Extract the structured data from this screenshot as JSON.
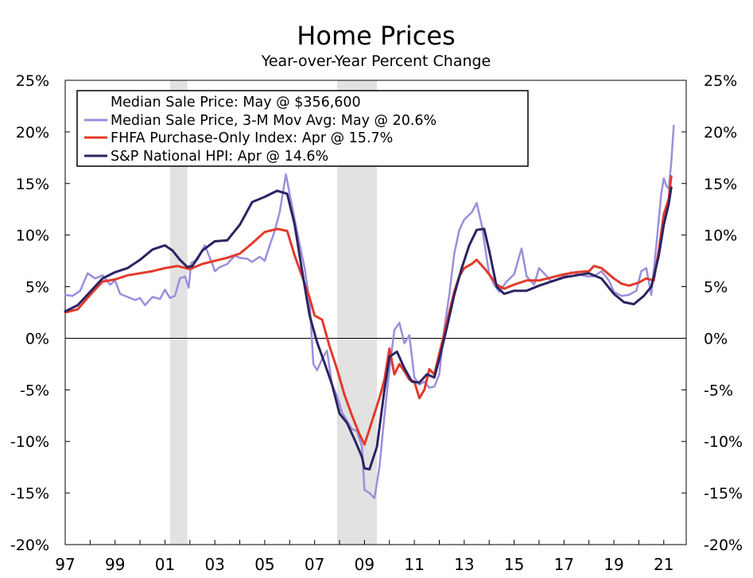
{
  "chart_data": {
    "type": "line",
    "title": "Home Prices",
    "subtitle": "Year-over-Year Percent Change",
    "xlabel": "",
    "ylabel": "",
    "xlim": [
      1997.0,
      2021.9
    ],
    "ylim": [
      -20,
      25
    ],
    "y_ticks": [
      25,
      20,
      15,
      10,
      5,
      0,
      -5,
      -10,
      -15,
      -20
    ],
    "y_tick_labels": [
      "25%",
      "20%",
      "15%",
      "10%",
      "5%",
      "0%",
      "-5%",
      "-10%",
      "-15%",
      "-20%"
    ],
    "x_ticks": [
      1997,
      1999,
      2001,
      2003,
      2005,
      2007,
      2009,
      2011,
      2013,
      2015,
      2017,
      2019,
      2021
    ],
    "x_tick_labels": [
      "97",
      "99",
      "01",
      "03",
      "05",
      "07",
      "09",
      "11",
      "13",
      "15",
      "17",
      "19",
      "21"
    ],
    "recessions": [
      [
        2001.2,
        2001.9
      ],
      [
        2007.9,
        2009.5
      ]
    ],
    "legend": {
      "position": "top-left",
      "entries": [
        {
          "label": "Median Sale Price: May @ $356,600",
          "series": null
        },
        {
          "label": "Median Sale Price, 3-M Mov Avg: May @ 20.6%",
          "series": "median"
        },
        {
          "label": "FHFA Purchase-Only Index: Apr @ 15.7%",
          "series": "fhfa"
        },
        {
          "label": "S&P National HPI: Apr @ 14.6%",
          "series": "sp"
        }
      ]
    },
    "series": [
      {
        "id": "median",
        "name": "Median Sale Price, 3-M Mov Avg",
        "color": "#9b8fdc",
        "width": 2.5,
        "points": [
          [
            1997.0,
            4.2
          ],
          [
            1997.3,
            4.1
          ],
          [
            1997.6,
            4.6
          ],
          [
            1997.9,
            6.3
          ],
          [
            1998.2,
            5.8
          ],
          [
            1998.5,
            6.1
          ],
          [
            1998.8,
            5.2
          ],
          [
            1999.0,
            5.6
          ],
          [
            1999.2,
            4.3
          ],
          [
            1999.5,
            4.0
          ],
          [
            1999.8,
            3.7
          ],
          [
            2000.0,
            3.9
          ],
          [
            2000.2,
            3.2
          ],
          [
            2000.5,
            4.0
          ],
          [
            2000.8,
            3.8
          ],
          [
            2001.0,
            4.7
          ],
          [
            2001.2,
            3.9
          ],
          [
            2001.4,
            4.1
          ],
          [
            2001.6,
            5.8
          ],
          [
            2001.8,
            6.0
          ],
          [
            2001.95,
            4.9
          ],
          [
            2002.05,
            7.3
          ],
          [
            2002.3,
            7.6
          ],
          [
            2002.6,
            9.0
          ],
          [
            2002.9,
            7.2
          ],
          [
            2003.0,
            6.5
          ],
          [
            2003.2,
            6.9
          ],
          [
            2003.5,
            7.2
          ],
          [
            2003.8,
            8.0
          ],
          [
            2004.0,
            7.8
          ],
          [
            2004.3,
            7.7
          ],
          [
            2004.5,
            7.4
          ],
          [
            2004.8,
            7.9
          ],
          [
            2005.0,
            7.5
          ],
          [
            2005.2,
            9.0
          ],
          [
            2005.4,
            10.4
          ],
          [
            2005.6,
            12.2
          ],
          [
            2005.85,
            15.9
          ],
          [
            2006.0,
            14.0
          ],
          [
            2006.3,
            10.3
          ],
          [
            2006.6,
            6.8
          ],
          [
            2006.8,
            3.5
          ],
          [
            2006.95,
            -2.5
          ],
          [
            2007.1,
            -3.1
          ],
          [
            2007.3,
            -2.0
          ],
          [
            2007.5,
            -1.2
          ],
          [
            2007.7,
            -4.5
          ],
          [
            2007.9,
            -5.6
          ],
          [
            2008.1,
            -7.2
          ],
          [
            2008.3,
            -8.0
          ],
          [
            2008.5,
            -8.8
          ],
          [
            2008.7,
            -9.0
          ],
          [
            2008.9,
            -10.5
          ],
          [
            2009.0,
            -14.7
          ],
          [
            2009.2,
            -15.0
          ],
          [
            2009.4,
            -15.5
          ],
          [
            2009.6,
            -12.5
          ],
          [
            2009.8,
            -7.5
          ],
          [
            2010.0,
            -3.0
          ],
          [
            2010.2,
            0.8
          ],
          [
            2010.4,
            1.5
          ],
          [
            2010.6,
            -0.5
          ],
          [
            2010.8,
            0.3
          ],
          [
            2011.0,
            -3.8
          ],
          [
            2011.2,
            -4.5
          ],
          [
            2011.4,
            -4.2
          ],
          [
            2011.6,
            -4.8
          ],
          [
            2011.8,
            -4.7
          ],
          [
            2012.0,
            -3.5
          ],
          [
            2012.2,
            1.0
          ],
          [
            2012.4,
            4.2
          ],
          [
            2012.6,
            8.2
          ],
          [
            2012.8,
            10.5
          ],
          [
            2013.0,
            11.5
          ],
          [
            2013.3,
            12.2
          ],
          [
            2013.5,
            13.1
          ],
          [
            2013.7,
            11.0
          ],
          [
            2014.0,
            6.2
          ],
          [
            2014.2,
            5.2
          ],
          [
            2014.4,
            4.5
          ],
          [
            2014.7,
            5.5
          ],
          [
            2015.0,
            6.2
          ],
          [
            2015.2,
            7.9
          ],
          [
            2015.3,
            8.7
          ],
          [
            2015.5,
            6.0
          ],
          [
            2015.8,
            5.2
          ],
          [
            2016.0,
            6.8
          ],
          [
            2016.2,
            6.3
          ],
          [
            2016.5,
            5.5
          ],
          [
            2016.8,
            5.8
          ],
          [
            2017.0,
            6.0
          ],
          [
            2017.3,
            6.4
          ],
          [
            2017.6,
            6.2
          ],
          [
            2017.9,
            6.0
          ],
          [
            2018.2,
            6.0
          ],
          [
            2018.5,
            6.5
          ],
          [
            2018.8,
            5.6
          ],
          [
            2019.0,
            4.5
          ],
          [
            2019.3,
            4.1
          ],
          [
            2019.6,
            4.2
          ],
          [
            2019.9,
            4.6
          ],
          [
            2020.1,
            6.5
          ],
          [
            2020.3,
            6.8
          ],
          [
            2020.5,
            4.2
          ],
          [
            2020.7,
            9.0
          ],
          [
            2020.9,
            14.0
          ],
          [
            2021.0,
            15.5
          ],
          [
            2021.1,
            14.8
          ],
          [
            2021.2,
            14.5
          ],
          [
            2021.3,
            17.0
          ],
          [
            2021.4,
            20.6
          ]
        ]
      },
      {
        "id": "fhfa",
        "name": "FHFA Purchase-Only Index",
        "color": "#e33a2a",
        "width": 3,
        "points": [
          [
            1997.0,
            2.5
          ],
          [
            1997.5,
            2.8
          ],
          [
            1998.0,
            4.2
          ],
          [
            1998.5,
            5.5
          ],
          [
            1999.0,
            5.7
          ],
          [
            1999.5,
            6.1
          ],
          [
            2000.0,
            6.3
          ],
          [
            2000.5,
            6.5
          ],
          [
            2001.0,
            6.8
          ],
          [
            2001.5,
            7.0
          ],
          [
            2002.0,
            6.7
          ],
          [
            2002.5,
            7.2
          ],
          [
            2003.0,
            7.5
          ],
          [
            2003.5,
            7.8
          ],
          [
            2004.0,
            8.2
          ],
          [
            2004.5,
            9.2
          ],
          [
            2005.0,
            10.3
          ],
          [
            2005.5,
            10.6
          ],
          [
            2005.9,
            10.4
          ],
          [
            2006.2,
            8.0
          ],
          [
            2006.5,
            6.0
          ],
          [
            2006.8,
            3.9
          ],
          [
            2007.0,
            2.2
          ],
          [
            2007.3,
            1.8
          ],
          [
            2007.6,
            -0.8
          ],
          [
            2007.9,
            -3.0
          ],
          [
            2008.2,
            -5.5
          ],
          [
            2008.5,
            -7.5
          ],
          [
            2008.8,
            -9.3
          ],
          [
            2009.0,
            -10.3
          ],
          [
            2009.2,
            -8.8
          ],
          [
            2009.4,
            -7.3
          ],
          [
            2009.6,
            -5.8
          ],
          [
            2009.8,
            -4.0
          ],
          [
            2010.0,
            -1.0
          ],
          [
            2010.2,
            -3.5
          ],
          [
            2010.4,
            -2.5
          ],
          [
            2010.6,
            -3.2
          ],
          [
            2010.8,
            -4.0
          ],
          [
            2011.0,
            -4.2
          ],
          [
            2011.2,
            -5.8
          ],
          [
            2011.4,
            -5.0
          ],
          [
            2011.6,
            -3.0
          ],
          [
            2011.8,
            -3.5
          ],
          [
            2012.0,
            -1.5
          ],
          [
            2012.2,
            0.5
          ],
          [
            2012.4,
            2.5
          ],
          [
            2012.6,
            4.5
          ],
          [
            2012.8,
            6.0
          ],
          [
            2013.0,
            6.8
          ],
          [
            2013.3,
            7.2
          ],
          [
            2013.5,
            7.6
          ],
          [
            2013.8,
            6.8
          ],
          [
            2014.0,
            6.2
          ],
          [
            2014.3,
            5.2
          ],
          [
            2014.6,
            4.8
          ],
          [
            2015.0,
            5.2
          ],
          [
            2015.5,
            5.6
          ],
          [
            2016.0,
            5.6
          ],
          [
            2016.5,
            5.9
          ],
          [
            2017.0,
            6.2
          ],
          [
            2017.5,
            6.4
          ],
          [
            2018.0,
            6.5
          ],
          [
            2018.2,
            7.0
          ],
          [
            2018.5,
            6.8
          ],
          [
            2019.0,
            5.8
          ],
          [
            2019.3,
            5.3
          ],
          [
            2019.6,
            5.1
          ],
          [
            2020.0,
            5.4
          ],
          [
            2020.3,
            5.8
          ],
          [
            2020.6,
            5.6
          ],
          [
            2020.8,
            8.5
          ],
          [
            2021.0,
            12.0
          ],
          [
            2021.2,
            13.5
          ],
          [
            2021.3,
            15.7
          ]
        ]
      },
      {
        "id": "sp",
        "name": "S&P National HPI",
        "color": "#2b2462",
        "width": 3,
        "points": [
          [
            1997.0,
            2.6
          ],
          [
            1997.5,
            3.2
          ],
          [
            1998.0,
            4.5
          ],
          [
            1998.5,
            5.8
          ],
          [
            1999.0,
            6.4
          ],
          [
            1999.5,
            6.8
          ],
          [
            2000.0,
            7.6
          ],
          [
            2000.5,
            8.6
          ],
          [
            2001.0,
            9.0
          ],
          [
            2001.3,
            8.5
          ],
          [
            2001.6,
            7.6
          ],
          [
            2001.9,
            6.9
          ],
          [
            2002.1,
            7.0
          ],
          [
            2002.5,
            8.5
          ],
          [
            2003.0,
            9.4
          ],
          [
            2003.5,
            9.5
          ],
          [
            2004.0,
            11.0
          ],
          [
            2004.5,
            13.2
          ],
          [
            2005.0,
            13.7
          ],
          [
            2005.5,
            14.3
          ],
          [
            2005.9,
            14.0
          ],
          [
            2006.2,
            11.0
          ],
          [
            2006.5,
            6.5
          ],
          [
            2006.8,
            2.2
          ],
          [
            2007.1,
            -0.4
          ],
          [
            2007.4,
            -2.4
          ],
          [
            2007.7,
            -4.5
          ],
          [
            2008.0,
            -7.3
          ],
          [
            2008.3,
            -8.2
          ],
          [
            2008.6,
            -9.8
          ],
          [
            2008.9,
            -11.5
          ],
          [
            2009.0,
            -12.6
          ],
          [
            2009.2,
            -12.7
          ],
          [
            2009.5,
            -10.5
          ],
          [
            2009.8,
            -5.0
          ],
          [
            2010.0,
            -1.8
          ],
          [
            2010.3,
            -1.3
          ],
          [
            2010.6,
            -2.9
          ],
          [
            2010.9,
            -4.2
          ],
          [
            2011.2,
            -4.3
          ],
          [
            2011.5,
            -3.5
          ],
          [
            2011.8,
            -3.8
          ],
          [
            2012.0,
            -2.0
          ],
          [
            2012.3,
            1.0
          ],
          [
            2012.6,
            4.2
          ],
          [
            2012.9,
            6.8
          ],
          [
            2013.2,
            9.0
          ],
          [
            2013.5,
            10.5
          ],
          [
            2013.8,
            10.6
          ],
          [
            2014.0,
            8.5
          ],
          [
            2014.3,
            5.0
          ],
          [
            2014.6,
            4.3
          ],
          [
            2015.0,
            4.6
          ],
          [
            2015.5,
            4.6
          ],
          [
            2016.0,
            5.1
          ],
          [
            2016.5,
            5.5
          ],
          [
            2017.0,
            5.9
          ],
          [
            2017.5,
            6.1
          ],
          [
            2018.0,
            6.3
          ],
          [
            2018.5,
            5.8
          ],
          [
            2019.0,
            4.3
          ],
          [
            2019.4,
            3.5
          ],
          [
            2019.8,
            3.3
          ],
          [
            2020.2,
            4.1
          ],
          [
            2020.5,
            5.0
          ],
          [
            2020.8,
            8.0
          ],
          [
            2021.0,
            11.0
          ],
          [
            2021.2,
            13.0
          ],
          [
            2021.3,
            14.6
          ]
        ]
      }
    ]
  }
}
